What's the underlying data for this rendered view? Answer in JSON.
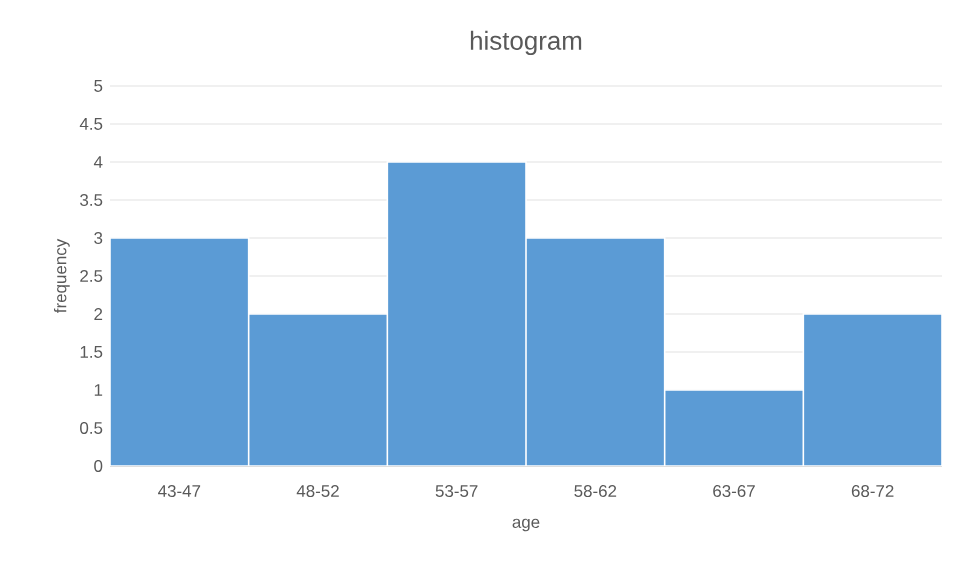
{
  "chart_data": {
    "type": "bar",
    "title": "histogram",
    "xlabel": "age",
    "ylabel": "frequency",
    "categories": [
      "43-47",
      "48-52",
      "53-57",
      "58-62",
      "63-67",
      "68-72"
    ],
    "values": [
      3,
      2,
      4,
      3,
      1,
      2
    ],
    "color": "#5b9bd5",
    "ylim": [
      0,
      5
    ],
    "yticks": [
      0,
      0.5,
      1,
      1.5,
      2,
      2.5,
      3,
      3.5,
      4,
      4.5,
      5
    ],
    "grid": "y"
  }
}
